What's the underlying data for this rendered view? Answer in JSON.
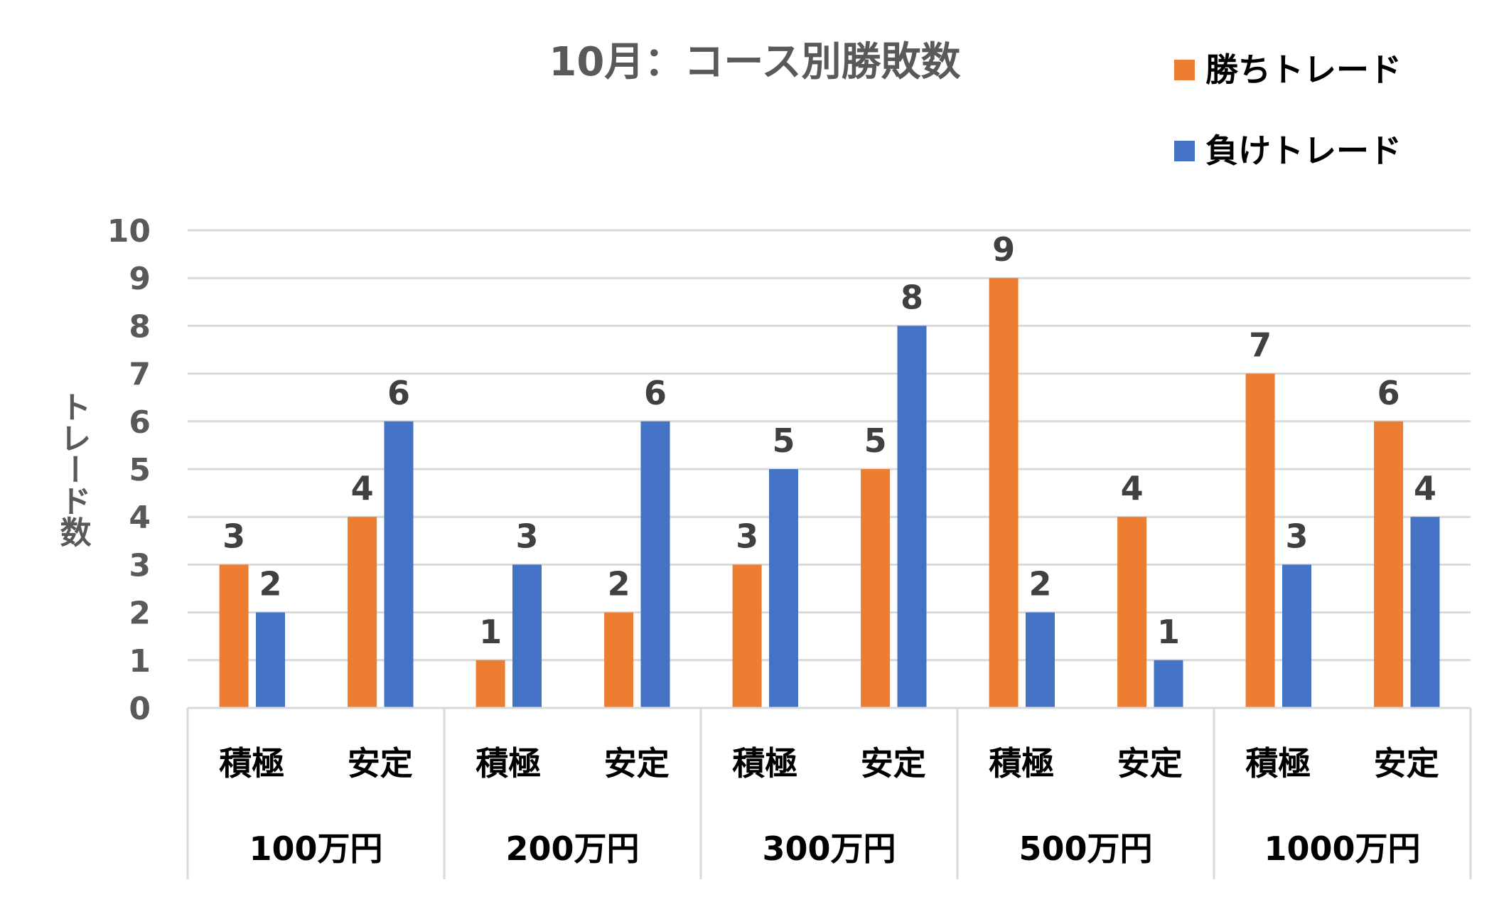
{
  "chart_data": {
    "type": "bar",
    "title": "10月：コース別勝敗数",
    "ylabel": "トレード数",
    "xlabel": "",
    "ylim": [
      0,
      10
    ],
    "yticks": [
      "0",
      "1",
      "2",
      "3",
      "4",
      "5",
      "6",
      "7",
      "8",
      "9",
      "10"
    ],
    "grid": true,
    "legend_position": "top-right",
    "groups": [
      "100万円",
      "200万円",
      "300万円",
      "500万円",
      "1000万円"
    ],
    "categories": [
      "積極",
      "安定",
      "積極",
      "安定",
      "積極",
      "安定",
      "積極",
      "安定",
      "積極",
      "安定"
    ],
    "series": [
      {
        "name": "勝ちトレード",
        "color": "#ED7D31",
        "values": [
          3,
          4,
          1,
          2,
          3,
          5,
          9,
          4,
          7,
          6
        ]
      },
      {
        "name": "負けトレード",
        "color": "#4472C4",
        "values": [
          2,
          6,
          3,
          6,
          5,
          8,
          2,
          1,
          3,
          4
        ]
      }
    ],
    "data_labels": true
  }
}
